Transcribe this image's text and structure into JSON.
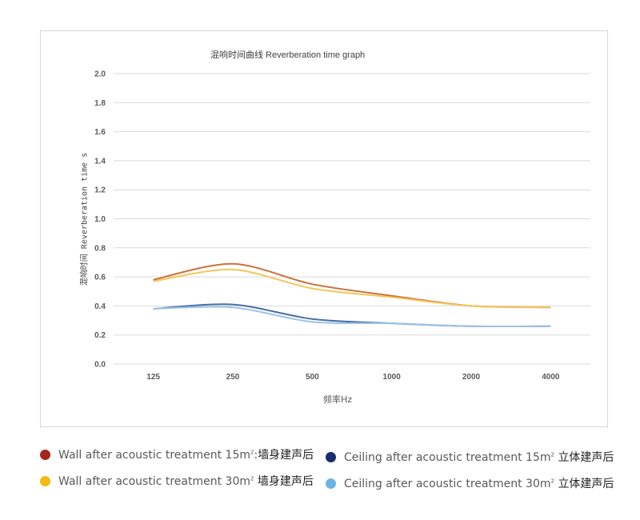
{
  "chart_data": {
    "type": "line",
    "title": "混响时间曲线 Reverberation time graph",
    "xlabel": "频率Hz",
    "ylabel": "混响时间 Reverberation time s",
    "categories": [
      "125",
      "250",
      "500",
      "1000",
      "2000",
      "4000"
    ],
    "y_ticks": [
      "0.0",
      "0.2",
      "0.4",
      "0.6",
      "0.8",
      "1.0",
      "1.2",
      "1.4",
      "1.6",
      "1.8",
      "2.0"
    ],
    "ylim": [
      0,
      2.0
    ],
    "grid": true,
    "smooth": true,
    "legend_position": "bottom",
    "series": [
      {
        "name": "Wall after acoustic treatment 15m² 墙身建声后",
        "color": "#C9713B",
        "values": [
          0.58,
          0.69,
          0.55,
          0.47,
          0.4,
          0.39
        ]
      },
      {
        "name": "Wall after acoustic treatment 30m² 墙身建声后",
        "color": "#F5C65A",
        "values": [
          0.57,
          0.65,
          0.52,
          0.46,
          0.4,
          0.39
        ]
      },
      {
        "name": "Ceiling after acoustic treatment 15m² 立体建声后",
        "color": "#4A6FA5",
        "values": [
          0.38,
          0.41,
          0.31,
          0.28,
          0.26,
          0.26
        ]
      },
      {
        "name": "Ceiling after acoustic treatment 30m² 立体建声后",
        "color": "#9DC3E6",
        "values": [
          0.38,
          0.39,
          0.29,
          0.28,
          0.26,
          0.26
        ]
      }
    ]
  },
  "chart": {
    "title": "混响时间曲线 Reverberation time graph",
    "xlabel": "频率Hz",
    "ylabel": "混响时间 Reverberation time s"
  },
  "legend": [
    {
      "text": "Wall after acoustic treatment 15m",
      "sup": "2",
      "cn": "墙身建声后",
      "sep": ":",
      "color": "#A4241E"
    },
    {
      "text": "Wall after acoustic treatment 30m",
      "sup": "2",
      "cn": "墙身建声后",
      "sep": "",
      "color": "#F4B912"
    },
    {
      "text": "Ceiling after acoustic treatment 15m",
      "sup": "2",
      "cn": "立体建声后",
      "sep": "",
      "color": "#1B2F6E"
    },
    {
      "text": "Ceiling after acoustic treatment 30m",
      "sup": "2",
      "cn": "立体建声后",
      "sep": "",
      "color": "#6CB4E4"
    }
  ]
}
